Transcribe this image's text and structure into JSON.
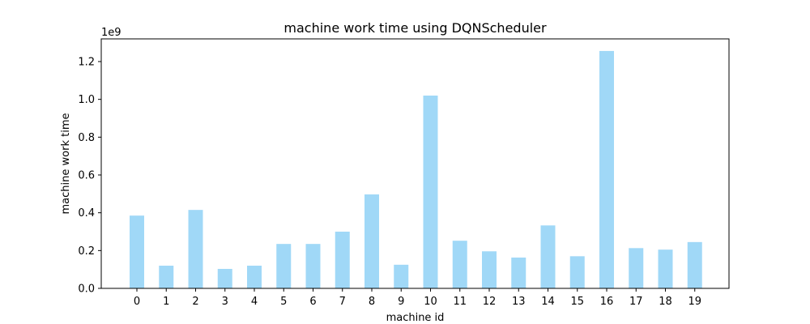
{
  "chart_data": {
    "type": "bar",
    "title": "machine work time using DQNScheduler",
    "xlabel": "machine id",
    "ylabel": "machine work time",
    "y_offset_label": "1e9",
    "categories": [
      "0",
      "1",
      "2",
      "3",
      "4",
      "5",
      "6",
      "7",
      "8",
      "9",
      "10",
      "11",
      "12",
      "13",
      "14",
      "15",
      "16",
      "17",
      "18",
      "19"
    ],
    "values": [
      0.385,
      0.12,
      0.415,
      0.103,
      0.12,
      0.235,
      0.235,
      0.3,
      0.497,
      0.125,
      1.02,
      0.252,
      0.196,
      0.163,
      0.333,
      0.17,
      1.256,
      0.213,
      0.205,
      0.245
    ],
    "value_units": "1e9",
    "ylim": [
      0,
      1.32
    ],
    "yticks": [
      0.0,
      0.2,
      0.4,
      0.6,
      0.8,
      1.0,
      1.2
    ],
    "ytick_labels": [
      "0.0",
      "0.2",
      "0.4",
      "0.6",
      "0.8",
      "1.0",
      "1.2"
    ],
    "grid": false,
    "bar_color": "#a0d8f7"
  }
}
